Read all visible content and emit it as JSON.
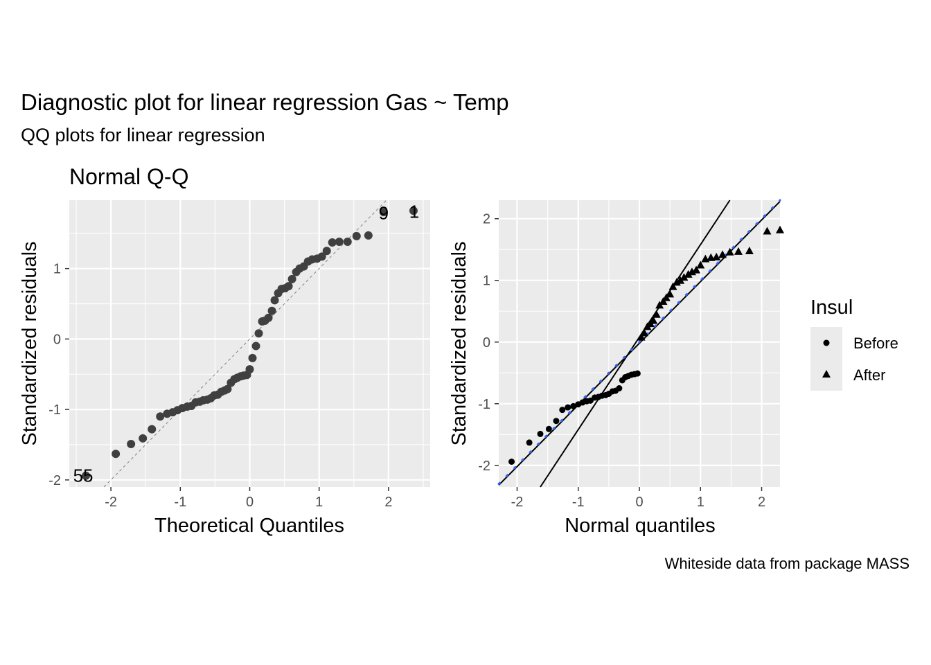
{
  "title": "Diagnostic plot for linear regression  Gas ~ Temp",
  "subtitle": "QQ plots for linear regression",
  "caption": "Whiteside data from package MASS",
  "colors": {
    "panel_bg": "#EBEBEB",
    "grid": "#FFFFFF",
    "points": "#404040",
    "marker": "#000000",
    "blue_line": "#3366FF",
    "ref_line": "#808080"
  },
  "chart_data": [
    {
      "type": "scatter",
      "title": "Normal Q-Q",
      "xlabel": "Theoretical Quantiles",
      "ylabel": "Standardized residuals",
      "xlim": [
        -2.6,
        2.6
      ],
      "ylim": [
        -2.1,
        1.97
      ],
      "xticks": [
        -2,
        -1,
        0,
        1,
        2
      ],
      "xtick_labels": [
        "-2",
        "-1",
        "0",
        "1",
        "2"
      ],
      "yticks": [
        -2,
        -1,
        0,
        1
      ],
      "ytick_labels": [
        "-2",
        "-1",
        "0",
        "1"
      ],
      "grid": true,
      "reference_line": {
        "style": "dashed",
        "slope": 1,
        "intercept": 0
      },
      "point_labels": [
        {
          "text": "55",
          "x": -2.4,
          "y": -1.95
        },
        {
          "text": "9",
          "x": 1.93,
          "y": 1.78
        },
        {
          "text": "1",
          "x": 2.37,
          "y": 1.8
        }
      ],
      "x": [
        -2.36,
        -1.93,
        -1.71,
        -1.54,
        -1.41,
        -1.29,
        -1.19,
        -1.11,
        -1.04,
        -0.97,
        -0.9,
        -0.84,
        -0.78,
        -0.72,
        -0.67,
        -0.61,
        -0.56,
        -0.51,
        -0.46,
        -0.41,
        -0.36,
        -0.32,
        -0.27,
        -0.22,
        -0.18,
        -0.13,
        -0.09,
        -0.04,
        0.0,
        0.04,
        0.09,
        0.13,
        0.18,
        0.22,
        0.27,
        0.32,
        0.36,
        0.41,
        0.46,
        0.51,
        0.56,
        0.61,
        0.67,
        0.72,
        0.78,
        0.84,
        0.9,
        0.97,
        1.04,
        1.11,
        1.19,
        1.29,
        1.41,
        1.54,
        1.71,
        1.93,
        2.36
      ],
      "y": [
        -1.94,
        -1.63,
        -1.49,
        -1.41,
        -1.28,
        -1.1,
        -1.06,
        -1.04,
        -1.01,
        -0.98,
        -0.96,
        -0.95,
        -0.9,
        -0.89,
        -0.87,
        -0.86,
        -0.84,
        -0.8,
        -0.79,
        -0.75,
        -0.73,
        -0.71,
        -0.62,
        -0.57,
        -0.55,
        -0.53,
        -0.52,
        -0.51,
        -0.43,
        -0.27,
        -0.1,
        0.08,
        0.25,
        0.26,
        0.3,
        0.4,
        0.55,
        0.65,
        0.71,
        0.72,
        0.75,
        0.85,
        0.95,
        1.0,
        1.03,
        1.1,
        1.13,
        1.14,
        1.17,
        1.25,
        1.37,
        1.38,
        1.38,
        1.46,
        1.47,
        1.8,
        1.82
      ]
    },
    {
      "type": "scatter",
      "title": "",
      "xlabel": "Normal quantiles",
      "ylabel": "Standardized residuals",
      "xlim": [
        -2.3,
        2.3
      ],
      "ylim": [
        -2.35,
        2.3
      ],
      "xticks": [
        -2,
        -1,
        0,
        1,
        2
      ],
      "xtick_labels": [
        "-2",
        "-1",
        "0",
        "1",
        "2"
      ],
      "yticks": [
        -2,
        -1,
        0,
        1,
        2
      ],
      "ytick_labels": [
        "-2",
        "-1",
        "0",
        "1",
        "2"
      ],
      "grid": true,
      "legend": {
        "title": "Insul",
        "placement": "right",
        "entries": [
          "Before",
          "After"
        ]
      },
      "lines": [
        {
          "group": "Before",
          "style": "solid",
          "slope": 1.0,
          "intercept": -0.02
        },
        {
          "group": "After",
          "style": "solid",
          "slope": 1.5,
          "intercept": 0.08
        },
        {
          "group": "overall",
          "style": "dotted",
          "color": "#3366FF",
          "slope": 1.0,
          "intercept": 0.0
        }
      ],
      "series": [
        {
          "name": "Before",
          "marker": "circle",
          "x": [
            -2.09,
            -1.8,
            -1.62,
            -1.48,
            -1.36,
            -1.26,
            -1.17,
            -1.08,
            -1.0,
            -0.93,
            -0.86,
            -0.8,
            -0.73,
            -0.67,
            -0.61,
            -0.55,
            -0.5,
            -0.44,
            -0.39,
            -0.33,
            -0.28,
            -0.23,
            -0.18,
            -0.13,
            -0.08,
            -0.03
          ],
          "y": [
            -1.94,
            -1.63,
            -1.49,
            -1.41,
            -1.28,
            -1.1,
            -1.06,
            -1.04,
            -1.01,
            -0.98,
            -0.96,
            -0.95,
            -0.9,
            -0.89,
            -0.87,
            -0.86,
            -0.84,
            -0.8,
            -0.79,
            -0.75,
            -0.62,
            -0.57,
            -0.55,
            -0.53,
            -0.52,
            -0.51
          ]
        },
        {
          "name": "After",
          "marker": "triangle",
          "x": [
            0.03,
            0.08,
            0.13,
            0.18,
            0.23,
            0.28,
            0.33,
            0.39,
            0.44,
            0.5,
            0.55,
            0.61,
            0.67,
            0.73,
            0.8,
            0.86,
            0.93,
            1.0,
            1.08,
            1.17,
            1.26,
            1.36,
            1.48,
            1.62,
            1.8,
            2.09,
            2.3
          ],
          "y": [
            0.08,
            0.15,
            0.25,
            0.3,
            0.35,
            0.45,
            0.6,
            0.66,
            0.72,
            0.78,
            0.9,
            0.97,
            1.0,
            1.05,
            1.1,
            1.14,
            1.17,
            1.25,
            1.35,
            1.37,
            1.38,
            1.42,
            1.46,
            1.47,
            1.48,
            1.8,
            1.82
          ]
        }
      ]
    }
  ]
}
